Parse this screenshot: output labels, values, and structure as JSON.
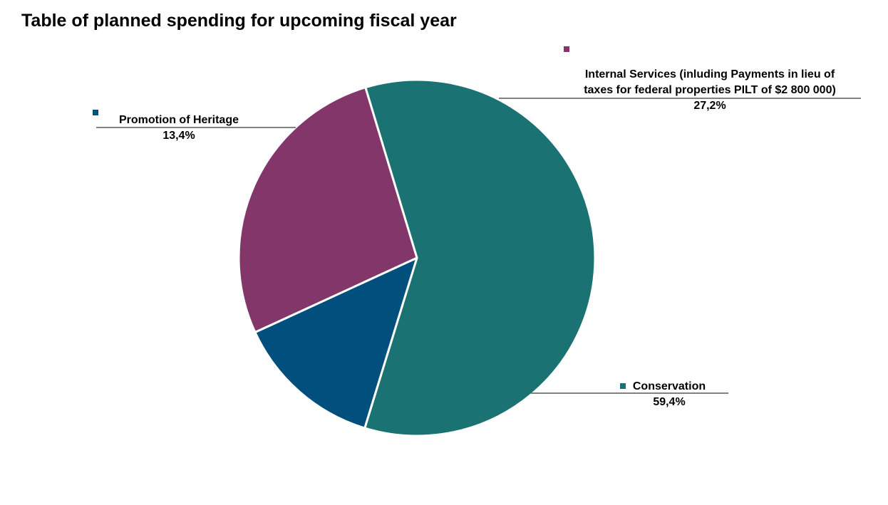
{
  "chart_data": {
    "type": "pie",
    "title": "Table of planned spending for upcoming fiscal year",
    "slices": [
      {
        "name": "Conservation",
        "value": 59.4,
        "label": "59,4%",
        "color": "#1b7272"
      },
      {
        "name": "Promotion of Heritage",
        "value": 13.4,
        "label": "13,4%",
        "color": "#004f7c"
      },
      {
        "name": "Internal Services (inluding Payments in lieu of taxes for federal properties PILT of $2 800 000)",
        "name_lines": [
          "Internal Services (inluding Payments in lieu of",
          "taxes for federal properties PILT of $2 800 000)"
        ],
        "value": 27.2,
        "label": "27,2%",
        "color": "#833669"
      }
    ],
    "legend": "none",
    "data_labels": "outside with leader lines"
  }
}
